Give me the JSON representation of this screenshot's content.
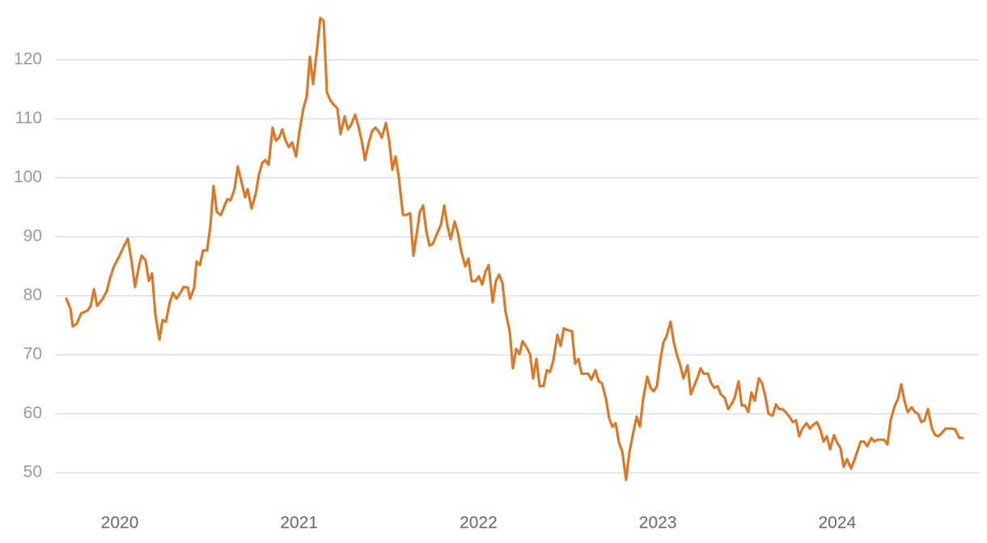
{
  "chart_data": {
    "type": "line",
    "color": "#d97a2b",
    "grid": true,
    "xlim": [
      2019.639,
      2024.79
    ],
    "xticks": [
      2020,
      2021,
      2022,
      2023,
      2024
    ],
    "ylim": [
      45,
      128
    ],
    "yticks": [
      50,
      60,
      70,
      80,
      90,
      100,
      110,
      120
    ],
    "x": [
      2019.702,
      2019.725,
      2019.738,
      2019.761,
      2019.784,
      2019.82,
      2019.838,
      2019.856,
      2019.874,
      2019.905,
      2019.928,
      2019.946,
      2019.968,
      2019.996,
      2020.023,
      2020.045,
      2020.067,
      2020.085,
      2020.108,
      2020.122,
      2020.144,
      2020.162,
      2020.18,
      2020.198,
      2020.221,
      2020.239,
      2020.257,
      2020.279,
      2020.297,
      2020.316,
      2020.338,
      2020.356,
      2020.379,
      2020.392,
      2020.415,
      2020.428,
      2020.446,
      2020.465,
      2020.487,
      2020.505,
      2020.523,
      2020.541,
      2020.564,
      2020.582,
      2020.6,
      2020.618,
      2020.64,
      2020.658,
      2020.677,
      2020.699,
      2020.713,
      2020.735,
      2020.758,
      2020.776,
      2020.794,
      2020.812,
      2020.83,
      2020.852,
      2020.87,
      2020.888,
      2020.906,
      2020.925,
      2020.943,
      2020.961,
      2020.983,
      2021.001,
      2021.024,
      2021.042,
      2021.06,
      2021.078,
      2021.1,
      2021.118,
      2021.137,
      2021.155,
      2021.173,
      2021.195,
      2021.213,
      2021.231,
      2021.254,
      2021.272,
      2021.29,
      2021.312,
      2021.33,
      2021.349,
      2021.367,
      2021.389,
      2021.407,
      2021.425,
      2021.443,
      2021.461,
      2021.484,
      2021.502,
      2021.52,
      2021.538,
      2021.556,
      2021.579,
      2021.597,
      2021.619,
      2021.637,
      2021.655,
      2021.673,
      2021.691,
      2021.709,
      2021.727,
      2021.745,
      2021.763,
      2021.791,
      2021.809,
      2021.827,
      2021.845,
      2021.867,
      2021.885,
      2021.903,
      2021.926,
      2021.944,
      2021.962,
      2021.984,
      2022.002,
      2022.021,
      2022.039,
      2022.057,
      2022.079,
      2022.097,
      2022.115,
      2022.133,
      2022.151,
      2022.174,
      2022.192,
      2022.21,
      2022.228,
      2022.246,
      2022.269,
      2022.287,
      2022.305,
      2022.323,
      2022.341,
      2022.363,
      2022.381,
      2022.399,
      2022.417,
      2022.44,
      2022.458,
      2022.476,
      2022.494,
      2022.521,
      2022.539,
      2022.557,
      2022.575,
      2022.593,
      2022.611,
      2022.629,
      2022.652,
      2022.67,
      2022.688,
      2022.711,
      2022.729,
      2022.747,
      2022.765,
      2022.783,
      2022.801,
      2022.823,
      2022.841,
      2022.859,
      2022.882,
      2022.9,
      2022.918,
      2022.941,
      2022.959,
      2022.977,
      2022.995,
      2023.013,
      2023.031,
      2023.049,
      2023.071,
      2023.089,
      2023.107,
      2023.125,
      2023.143,
      2023.166,
      2023.184,
      2023.202,
      2023.22,
      2023.238,
      2023.256,
      2023.279,
      2023.297,
      2023.315,
      2023.333,
      2023.351,
      2023.373,
      2023.392,
      2023.41,
      2023.428,
      2023.45,
      2023.468,
      2023.486,
      2023.504,
      2023.522,
      2023.54,
      2023.563,
      2023.581,
      2023.599,
      2023.617,
      2023.64,
      2023.658,
      2023.676,
      2023.694,
      2023.712,
      2023.734,
      2023.752,
      2023.77,
      2023.788,
      2023.806,
      2023.829,
      2023.847,
      2023.865,
      2023.887,
      2023.906,
      2023.924,
      2023.942,
      2023.96,
      2023.982,
      2024.0,
      2024.018,
      2024.036,
      2024.055,
      2024.077,
      2024.095,
      2024.113,
      2024.131,
      2024.149,
      2024.167,
      2024.19,
      2024.208,
      2024.226,
      2024.244,
      2024.262,
      2024.28,
      2024.298,
      2024.321,
      2024.339,
      2024.357,
      2024.375,
      2024.393,
      2024.415,
      2024.433,
      2024.451,
      2024.469,
      2024.487,
      2024.506,
      2024.528,
      2024.546,
      2024.564,
      2024.582,
      2024.605,
      2024.623,
      2024.641,
      2024.659,
      2024.681,
      2024.699
    ],
    "values": [
      79.5,
      77.8,
      74.8,
      75.3,
      77,
      77.5,
      78.3,
      81.1,
      78.3,
      79.5,
      80.8,
      83,
      85,
      86.6,
      88.4,
      89.7,
      85.6,
      81.5,
      85.2,
      86.8,
      86,
      82.5,
      83.8,
      77,
      72.6,
      75.9,
      75.6,
      78.9,
      80.5,
      79.5,
      80.5,
      81.5,
      81.4,
      79.5,
      81.4,
      85.8,
      85.2,
      87.7,
      87.7,
      91.8,
      98.6,
      94.2,
      93.7,
      95.1,
      96.4,
      96.2,
      98.1,
      101.9,
      99.5,
      96.7,
      98.1,
      94.8,
      97.3,
      100.5,
      102.5,
      103,
      102.2,
      108.5,
      106.3,
      106.8,
      108.2,
      106.3,
      105.2,
      106,
      103.6,
      107.7,
      111.8,
      113.7,
      120.5,
      115.9,
      121.9,
      127.1,
      126.6,
      114.5,
      113.2,
      112.3,
      111.8,
      107.4,
      110.4,
      108.2,
      109,
      110.7,
      108.8,
      106.3,
      103,
      106,
      107.9,
      108.5,
      107.9,
      106.8,
      109.3,
      106.3,
      101.4,
      103.6,
      100,
      93.7,
      93.7,
      94,
      86.8,
      90.4,
      94.2,
      95.3,
      91,
      88.5,
      88.8,
      90.1,
      92.1,
      95.3,
      91.8,
      89.6,
      92.6,
      90.7,
      87.7,
      85,
      86.3,
      82.5,
      82.5,
      83.3,
      81.9,
      84.1,
      85.2,
      78.9,
      82.5,
      83.6,
      82.2,
      77.3,
      74,
      67.7,
      71,
      70.1,
      72.3,
      71.2,
      70.1,
      66,
      69.3,
      64.7,
      64.7,
      67.4,
      67.1,
      69,
      73.4,
      71.5,
      74.5,
      74.2,
      74,
      68.5,
      69.3,
      66.8,
      66.8,
      66.8,
      65.8,
      67.4,
      65.5,
      65.2,
      62.5,
      59.2,
      57.8,
      58.4,
      55.1,
      53.7,
      48.8,
      53.4,
      56.2,
      59.5,
      57.8,
      62.5,
      66.3,
      64.4,
      63.8,
      64.7,
      69,
      72.1,
      73.2,
      75.6,
      72.1,
      69.9,
      68.2,
      66,
      68.2,
      63.3,
      64.7,
      66,
      67.7,
      66.8,
      66.8,
      65.2,
      64.4,
      64.7,
      63.3,
      62.7,
      60.8,
      61.6,
      62.7,
      65.5,
      61.4,
      61.4,
      60.3,
      63.6,
      62.2,
      66,
      65.2,
      63,
      60,
      59.7,
      61.6,
      60.8,
      60.8,
      60.3,
      59.5,
      58.6,
      58.9,
      56.2,
      57.5,
      58.4,
      57.5,
      58.1,
      58.6,
      57.3,
      55.3,
      56.2,
      54,
      56.4,
      55.1,
      54.2,
      51,
      52.3,
      50.7,
      52.1,
      53.7,
      55.3,
      55.3,
      54.5,
      55.9,
      55.3,
      55.6,
      55.6,
      55.6,
      54.8,
      58.9,
      61.4,
      62.5,
      65,
      62.2,
      60.3,
      61.1,
      60.3,
      60,
      58.6,
      58.9,
      60.8,
      57.5,
      56.4,
      56.2,
      56.7,
      57.5,
      57.5,
      57.5,
      57.3,
      55.9,
      55.9
    ]
  }
}
